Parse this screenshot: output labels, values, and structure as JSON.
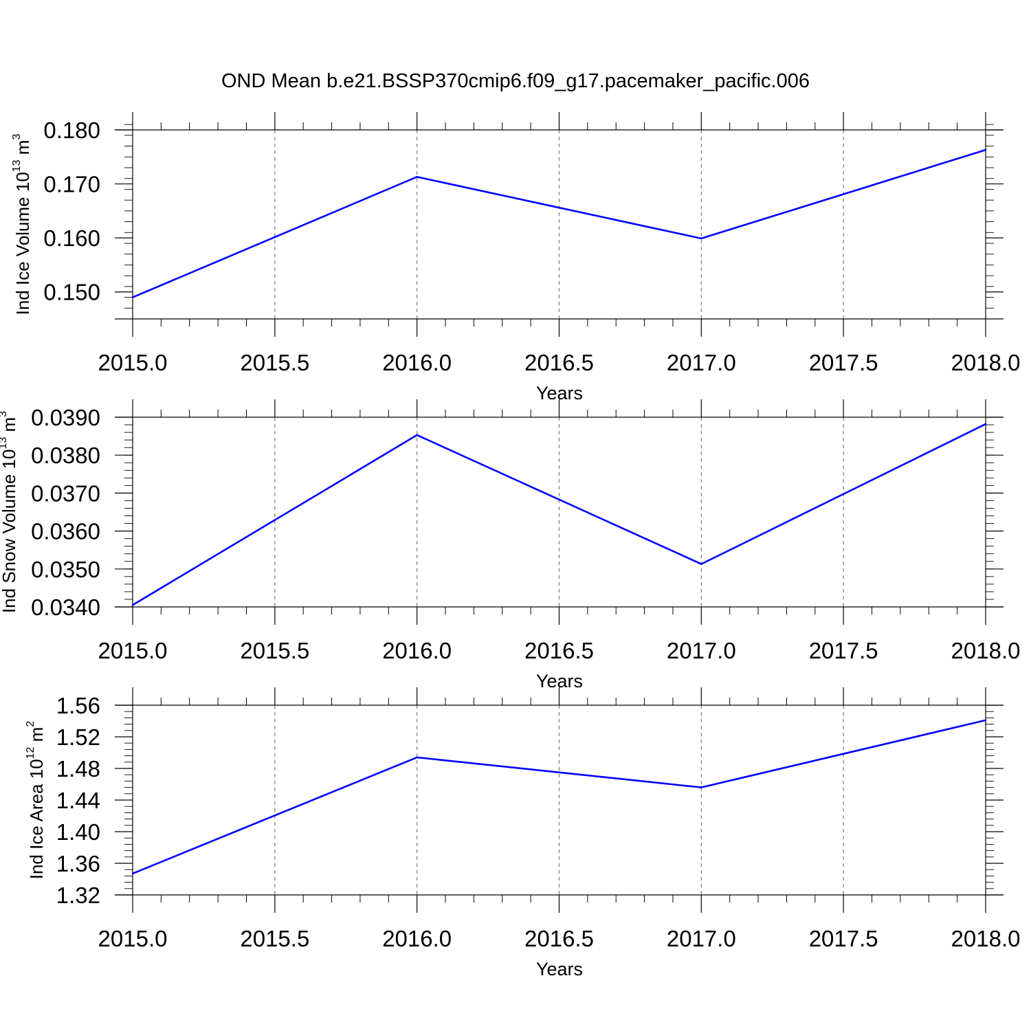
{
  "title": "OND Mean b.e21.BSSP370cmip6.f09_g17.pacemaker_pacific.006",
  "chart_data": [
    {
      "type": "line",
      "x": [
        2015.0,
        2016.0,
        2017.0,
        2018.0
      ],
      "series": [
        {
          "values": [
            0.149,
            0.1713,
            0.1599,
            0.1763
          ],
          "color": "#0000ff"
        }
      ],
      "xlabel": "Years",
      "ylabel": {
        "text": "Ind Ice Volume 10",
        "exponent": "13",
        "unit": " m",
        "unit_exponent": "3"
      },
      "xlim": [
        2015.0,
        2018.0
      ],
      "ylim": [
        0.145,
        0.18
      ],
      "xticks": [
        2015.0,
        2015.5,
        2016.0,
        2016.5,
        2017.0,
        2017.5,
        2018.0
      ],
      "xtick_labels": [
        "2015.0",
        "2015.5",
        "2016.0",
        "2016.5",
        "2017.0",
        "2017.5",
        "2018.0"
      ],
      "yticks": [
        0.15,
        0.16,
        0.17,
        0.18
      ],
      "ytick_labels": [
        "0.150",
        "0.160",
        "0.170",
        "0.180"
      ],
      "yminor_step": 0.002,
      "grid": "vertical-dashed"
    },
    {
      "type": "line",
      "x": [
        2015.0,
        2016.0,
        2017.0,
        2018.0
      ],
      "series": [
        {
          "values": [
            0.03405,
            0.03853,
            0.03513,
            0.03882
          ],
          "color": "#0000ff"
        }
      ],
      "xlabel": "Years",
      "ylabel": {
        "text": "Ind Snow Volume 10",
        "exponent": "13",
        "unit": " m",
        "unit_exponent": "3"
      },
      "xlim": [
        2015.0,
        2018.0
      ],
      "ylim": [
        0.034,
        0.039
      ],
      "xticks": [
        2015.0,
        2015.5,
        2016.0,
        2016.5,
        2017.0,
        2017.5,
        2018.0
      ],
      "xtick_labels": [
        "2015.0",
        "2015.5",
        "2016.0",
        "2016.5",
        "2017.0",
        "2017.5",
        "2018.0"
      ],
      "yticks": [
        0.034,
        0.035,
        0.036,
        0.037,
        0.038,
        0.039
      ],
      "ytick_labels": [
        "0.0340",
        "0.0350",
        "0.0360",
        "0.0370",
        "0.0380",
        "0.0390"
      ],
      "yminor_step": 0.0002,
      "grid": "vertical-dashed"
    },
    {
      "type": "line",
      "x": [
        2015.0,
        2016.0,
        2017.0,
        2018.0
      ],
      "series": [
        {
          "values": [
            1.347,
            1.494,
            1.456,
            1.541
          ],
          "color": "#0000ff"
        }
      ],
      "xlabel": "Years",
      "ylabel": {
        "text": "Ind Ice Area 10",
        "exponent": "12",
        "unit": " m",
        "unit_exponent": "2"
      },
      "xlim": [
        2015.0,
        2018.0
      ],
      "ylim": [
        1.32,
        1.56
      ],
      "xticks": [
        2015.0,
        2015.5,
        2016.0,
        2016.5,
        2017.0,
        2017.5,
        2018.0
      ],
      "xtick_labels": [
        "2015.0",
        "2015.5",
        "2016.0",
        "2016.5",
        "2017.0",
        "2017.5",
        "2018.0"
      ],
      "yticks": [
        1.32,
        1.36,
        1.4,
        1.44,
        1.48,
        1.52,
        1.56
      ],
      "ytick_labels": [
        "1.32",
        "1.36",
        "1.40",
        "1.44",
        "1.48",
        "1.52",
        "1.56"
      ],
      "yminor_step": 0.008,
      "grid": "vertical-dashed"
    }
  ]
}
